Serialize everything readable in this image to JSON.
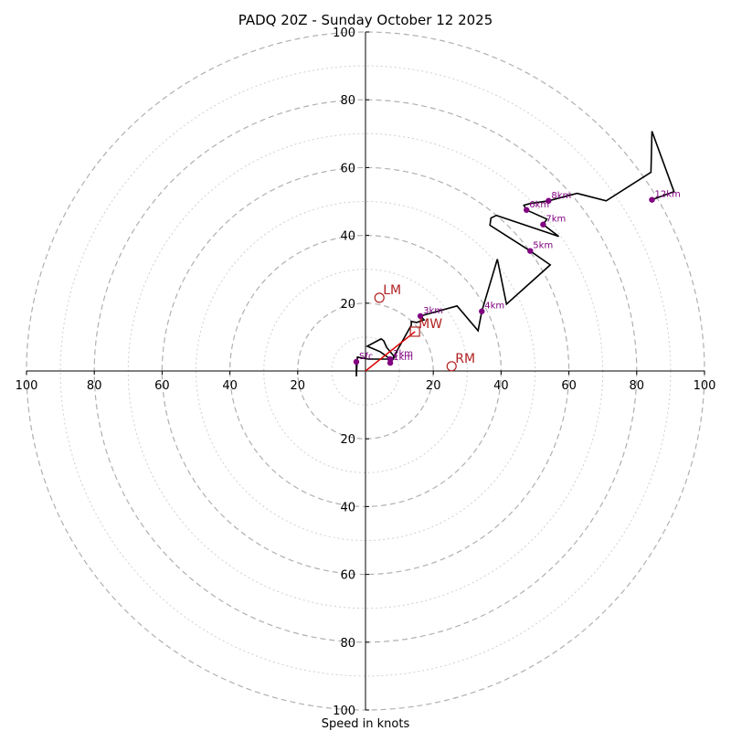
{
  "chart_data": {
    "type": "hodograph",
    "title": "PADQ 20Z - Sunday October 12 2025",
    "xlabel": "Speed in knots",
    "range": 100,
    "ring_step": 20,
    "minor_ring_step": 10,
    "x_ticks": [
      {
        "value": -100,
        "label": "100"
      },
      {
        "value": -80,
        "label": "80"
      },
      {
        "value": -60,
        "label": "60"
      },
      {
        "value": -40,
        "label": "40"
      },
      {
        "value": -20,
        "label": "20"
      },
      {
        "value": 20,
        "label": "20"
      },
      {
        "value": 40,
        "label": "40"
      },
      {
        "value": 60,
        "label": "60"
      },
      {
        "value": 80,
        "label": "80"
      },
      {
        "value": 100,
        "label": "100"
      }
    ],
    "y_ticks": [
      {
        "value": 100,
        "label": "100"
      },
      {
        "value": 80,
        "label": "80"
      },
      {
        "value": 60,
        "label": "60"
      },
      {
        "value": 40,
        "label": "40"
      },
      {
        "value": 20,
        "label": "20"
      },
      {
        "value": -20,
        "label": "20"
      },
      {
        "value": -40,
        "label": "40"
      },
      {
        "value": -60,
        "label": "60"
      },
      {
        "value": -80,
        "label": "80"
      },
      {
        "value": -100,
        "label": "100"
      }
    ],
    "trace": [
      [
        -2.7,
        2.7
      ],
      [
        -2.7,
        -1.6
      ],
      [
        -2.4,
        4.1
      ],
      [
        0.8,
        3.5
      ],
      [
        7.3,
        3.5
      ],
      [
        5.4,
        4.9
      ],
      [
        4.3,
        5.7
      ],
      [
        0.5,
        7.3
      ],
      [
        3.5,
        8.9
      ],
      [
        4.6,
        9.5
      ],
      [
        5.4,
        8.9
      ],
      [
        6.2,
        7.0
      ],
      [
        8.6,
        4.1
      ],
      [
        7.3,
        2.4
      ],
      [
        13.5,
        13.5
      ],
      [
        13.5,
        14.6
      ],
      [
        15.1,
        14.3
      ],
      [
        17.3,
        15.1
      ],
      [
        16.2,
        16.2
      ],
      [
        27.0,
        19.2
      ],
      [
        33.2,
        11.9
      ],
      [
        34.3,
        17.6
      ],
      [
        38.9,
        33.0
      ],
      [
        41.6,
        19.7
      ],
      [
        54.5,
        31.3
      ],
      [
        48.6,
        35.4
      ],
      [
        36.7,
        43.0
      ],
      [
        37.0,
        45.1
      ],
      [
        37.0,
        45.1
      ],
      [
        38.6,
        45.9
      ],
      [
        57.0,
        39.7
      ],
      [
        52.4,
        43.2
      ],
      [
        53.5,
        44.8
      ],
      [
        47.5,
        47.5
      ],
      [
        46.7,
        48.9
      ],
      [
        48.6,
        49.4
      ],
      [
        54.0,
        50.2
      ],
      [
        62.4,
        52.4
      ],
      [
        71.0,
        50.2
      ],
      [
        84.2,
        58.6
      ],
      [
        84.5,
        70.7
      ],
      [
        91.0,
        52.9
      ],
      [
        84.5,
        50.5
      ]
    ],
    "height_points": [
      {
        "label": "Sfc",
        "u": -2.7,
        "v": 2.7
      },
      {
        "label": "1km",
        "u": 7.3,
        "v": 2.4
      },
      {
        "label": "2km",
        "u": 7.3,
        "v": 3.5
      },
      {
        "label": "3km",
        "u": 16.2,
        "v": 16.2
      },
      {
        "label": "4km",
        "u": 34.3,
        "v": 17.6
      },
      {
        "label": "5km",
        "u": 48.6,
        "v": 35.4
      },
      {
        "label": "6km",
        "u": 47.5,
        "v": 47.5
      },
      {
        "label": "7km",
        "u": 52.4,
        "v": 43.2
      },
      {
        "label": "8km",
        "u": 54.0,
        "v": 50.2
      },
      {
        "label": "12km",
        "u": 84.5,
        "v": 50.5
      }
    ],
    "storm_motions": [
      {
        "label": "LM",
        "u": 4.1,
        "v": 21.6,
        "marker": "circle"
      },
      {
        "label": "RM",
        "u": 25.4,
        "v": 1.4,
        "marker": "circle"
      },
      {
        "label": "MW",
        "u": 14.6,
        "v": 11.6,
        "marker": "square"
      }
    ],
    "shear_vector": {
      "from": [
        0,
        0
      ],
      "to": [
        14.6,
        11.6
      ]
    },
    "colors": {
      "trace": "#000000",
      "height_point": "#800080",
      "storm_motion": "#b22222",
      "ring_major": "#b0b0b0",
      "ring_minor": "#d0d0d0",
      "axis": "#000000"
    }
  }
}
